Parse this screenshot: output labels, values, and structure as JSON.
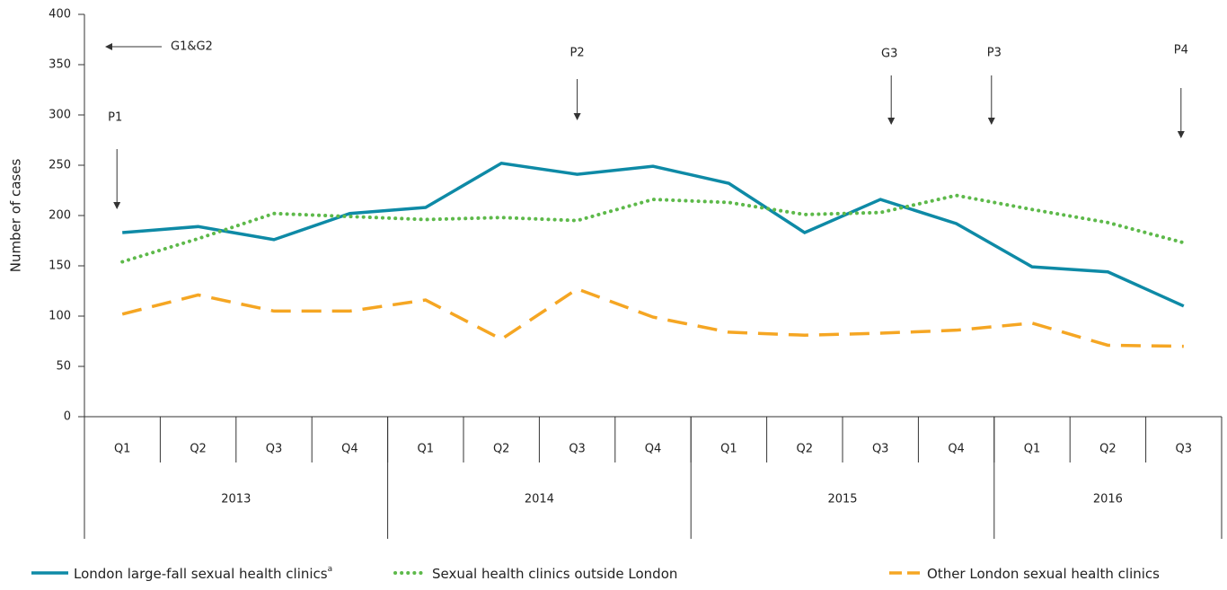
{
  "chart_data": {
    "type": "line",
    "y_label": "Number of cases",
    "categories": [
      "Q1",
      "Q2",
      "Q3",
      "Q4",
      "Q1",
      "Q2",
      "Q3",
      "Q4",
      "Q1",
      "Q2",
      "Q3",
      "Q4",
      "Q1",
      "Q2",
      "Q3"
    ],
    "year_groups": [
      {
        "label": "2013",
        "count": 4
      },
      {
        "label": "2014",
        "count": 4
      },
      {
        "label": "2015",
        "count": 4
      },
      {
        "label": "2016",
        "count": 3
      }
    ],
    "series": [
      {
        "name": "London large-fall sexual health clinics",
        "note": "a",
        "color": "#0e8aa6",
        "style": "solid",
        "values": [
          183,
          189,
          176,
          202,
          208,
          252,
          241,
          249,
          232,
          183,
          216,
          192,
          149,
          144,
          110
        ]
      },
      {
        "name": "Sexual health clinics outside London",
        "color": "#5db94a",
        "style": "dotted",
        "values": [
          154,
          177,
          202,
          199,
          196,
          198,
          195,
          216,
          213,
          201,
          203,
          220,
          206,
          193,
          173
        ]
      },
      {
        "name": "Other London sexual health clinics",
        "color": "#f5a623",
        "style": "dashed",
        "values": [
          102,
          121,
          105,
          105,
          116,
          77,
          127,
          99,
          84,
          81,
          83,
          86,
          93,
          71,
          70
        ]
      }
    ],
    "annotations": [
      "G1&G2",
      "P1",
      "P2",
      "G3",
      "P3",
      "P4"
    ],
    "ylim": [
      0,
      400
    ],
    "yticks": [
      0,
      50,
      100,
      150,
      200,
      250,
      300,
      350,
      400
    ]
  }
}
